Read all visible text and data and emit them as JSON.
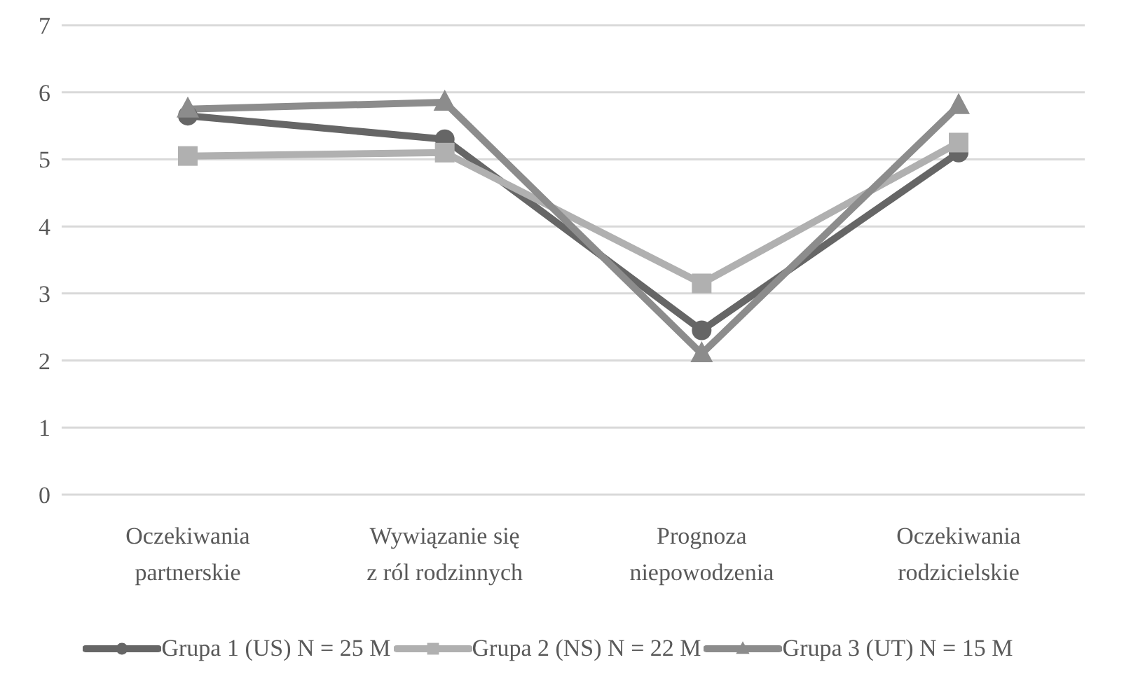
{
  "chart_data": {
    "type": "line",
    "categories": [
      "Oczekiwania\npartnerskie",
      "Wywiązanie się\nz ról rodzinnych",
      "Prognoza\nniepowodzenia",
      "Oczekiwania\nrodzicielskie"
    ],
    "series": [
      {
        "name": "Grupa 1 (US) N = 25 M",
        "color": "#666666",
        "marker": "circle",
        "values": [
          5.65,
          5.3,
          2.45,
          5.1
        ]
      },
      {
        "name": "Grupa 2 (NS) N = 22 M",
        "color": "#b0b0b0",
        "marker": "square",
        "values": [
          5.05,
          5.1,
          3.15,
          5.25
        ]
      },
      {
        "name": "Grupa 3 (UT) N = 15 M",
        "color": "#8c8c8c",
        "marker": "triangle",
        "values": [
          5.75,
          5.85,
          2.1,
          5.8
        ]
      }
    ],
    "ylim": [
      0,
      7
    ],
    "yticks": [
      0,
      1,
      2,
      3,
      4,
      5,
      6,
      7
    ],
    "grid": "y",
    "legend": "bottom",
    "line_style": "solid"
  }
}
